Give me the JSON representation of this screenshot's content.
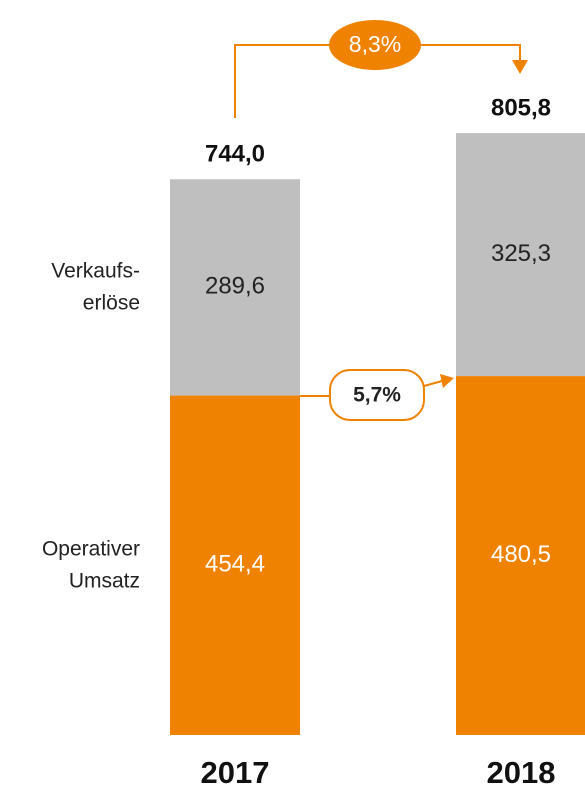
{
  "chart_data": {
    "type": "stacked_bar",
    "categories": [
      "2017",
      "2018"
    ],
    "series": [
      {
        "name": "Operativer\nUmsatz",
        "color": "#ef8200",
        "values": [
          454.4,
          480.5
        ],
        "value_labels": [
          "454,4",
          "480,5"
        ]
      },
      {
        "name": "Verkaufs-\nerlöse",
        "color": "#bfbfbf",
        "values": [
          289.6,
          325.3
        ],
        "value_labels": [
          "289,6",
          "325,3"
        ]
      }
    ],
    "totals": [
      744.0,
      805.8
    ],
    "total_labels": [
      "744,0",
      "805,8"
    ],
    "annotations": [
      "8,3%",
      "5,7%"
    ]
  }
}
